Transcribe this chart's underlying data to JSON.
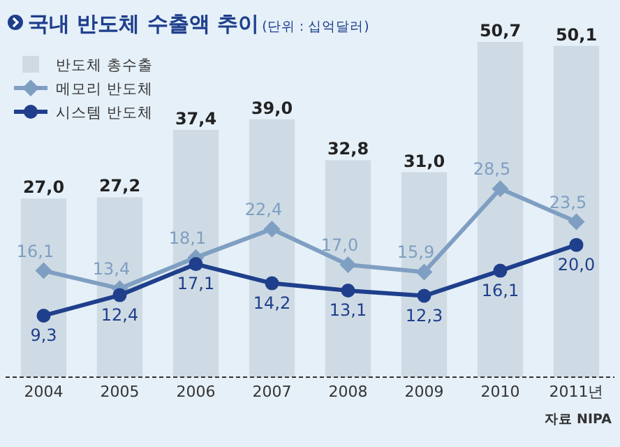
{
  "chart_data": {
    "type": "bar",
    "title": "국내 반도체 수출액 추이",
    "subtitle": "(단위 : 십억달러)",
    "categories": [
      "2004",
      "2005",
      "2006",
      "2007",
      "2008",
      "2009",
      "2010",
      "2011년"
    ],
    "series": [
      {
        "name": "반도체 총수출",
        "color": "#cfdbe4",
        "values": [
          27.0,
          27.2,
          37.4,
          39.0,
          32.8,
          31.0,
          50.7,
          50.1
        ],
        "value_labels": [
          "27,0",
          "27,2",
          "37,4",
          "39,0",
          "32,8",
          "31,0",
          "50,7",
          "50,1"
        ]
      },
      {
        "name": "메모리 반도체",
        "type": "line",
        "color": "#7f9fc2",
        "marker": "diamond",
        "values": [
          16.1,
          13.4,
          18.1,
          22.4,
          17.0,
          15.9,
          28.5,
          23.5
        ],
        "value_labels": [
          "16,1",
          "13,4",
          "18,1",
          "22,4",
          "17,0",
          "15,9",
          "28,5",
          "23,5"
        ]
      },
      {
        "name": "시스템 반도체",
        "type": "line",
        "color": "#1f3f8c",
        "marker": "circle",
        "values": [
          9.3,
          12.4,
          17.1,
          14.2,
          13.1,
          12.3,
          16.1,
          20.0
        ],
        "value_labels": [
          "9,3",
          "12,4",
          "17,1",
          "14,2",
          "13,1",
          "12,3",
          "16,1",
          "20,0"
        ]
      }
    ],
    "legend": "top left",
    "annotations": [
      "자료 NIPA"
    ]
  }
}
